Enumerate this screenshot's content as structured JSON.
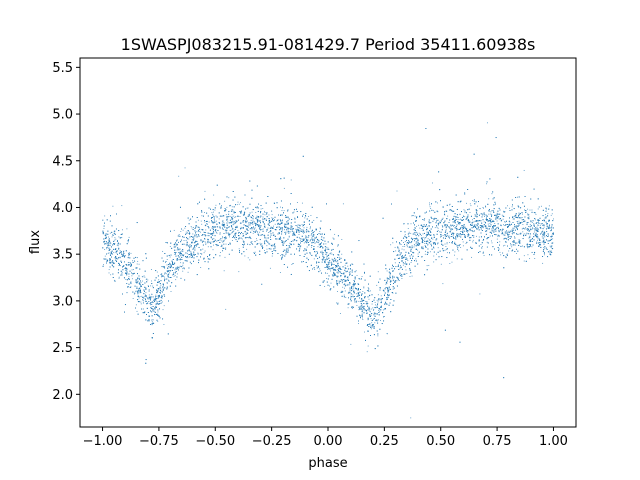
{
  "chart_data": {
    "type": "scatter",
    "title": "1SWASPJ083215.91-081429.7 Period 35411.60938s",
    "xlabel": "phase",
    "ylabel": "flux",
    "xlim": [
      -1.1,
      1.1
    ],
    "ylim": [
      1.65,
      5.6
    ],
    "x_ticks": [
      -1.0,
      -0.75,
      -0.5,
      -0.25,
      0.0,
      0.25,
      0.5,
      0.75,
      1.0
    ],
    "x_tick_labels": [
      "−1.00",
      "−0.75",
      "−0.50",
      "−0.25",
      "0.00",
      "0.25",
      "0.50",
      "0.75",
      "1.00"
    ],
    "y_ticks": [
      2.0,
      2.5,
      3.0,
      3.5,
      4.0,
      4.5,
      5.0,
      5.5
    ],
    "y_tick_labels": [
      "2.0",
      "2.5",
      "3.0",
      "3.5",
      "4.0",
      "4.5",
      "5.0",
      "5.5"
    ],
    "grid": false,
    "marker_color": "#1f77b4",
    "series": [
      {
        "x": [
          -1.0,
          -0.95,
          -0.9,
          -0.85,
          -0.8,
          -0.78,
          -0.75,
          -0.7,
          -0.65,
          -0.6,
          -0.55,
          -0.5,
          -0.45,
          -0.4,
          -0.35,
          -0.3,
          -0.25,
          -0.2,
          -0.15,
          -0.1,
          -0.05,
          0.0,
          0.05,
          0.1,
          0.15,
          0.2,
          0.22,
          0.25,
          0.3,
          0.35,
          0.4,
          0.45,
          0.5,
          0.55,
          0.6,
          0.65,
          0.7,
          0.75,
          0.8,
          0.85,
          0.9,
          0.95,
          1.0
        ],
        "y": [
          3.65,
          3.55,
          3.4,
          3.2,
          3.0,
          2.9,
          3.1,
          3.35,
          3.55,
          3.65,
          3.72,
          3.76,
          3.78,
          3.8,
          3.8,
          3.78,
          3.76,
          3.74,
          3.72,
          3.68,
          3.6,
          3.45,
          3.3,
          3.15,
          3.0,
          2.85,
          2.8,
          3.05,
          3.35,
          3.55,
          3.65,
          3.72,
          3.76,
          3.78,
          3.8,
          3.82,
          3.82,
          3.8,
          3.78,
          3.76,
          3.74,
          3.72,
          3.7
        ]
      }
    ]
  }
}
